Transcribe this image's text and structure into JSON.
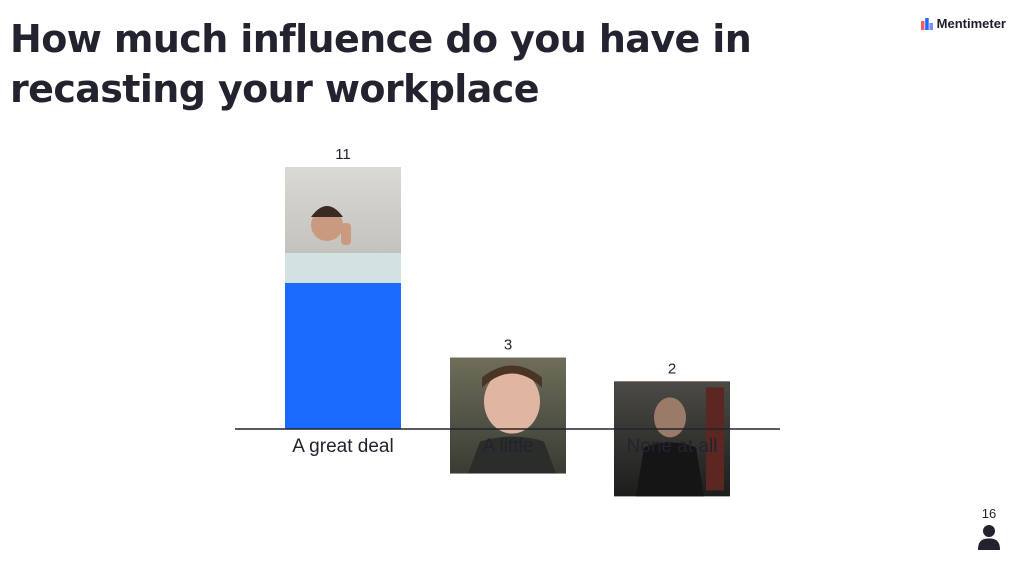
{
  "title": "How much influence do you have in recasting your workplace",
  "brand": {
    "name": "Mentimeter",
    "icon": "bar-chart-logo-icon",
    "colors": [
      "#ff5a5f",
      "#196cff"
    ]
  },
  "participants": {
    "count": "16",
    "icon": "person-icon"
  },
  "chart_data": {
    "type": "bar",
    "categories": [
      "A great deal",
      "A little",
      "None at all"
    ],
    "values": [
      11,
      3,
      2
    ],
    "colors": [
      "#196cff",
      "#ff89b8",
      "#ff4640"
    ],
    "data_labels": [
      "11",
      "3",
      "2"
    ],
    "ylim": [
      0,
      11
    ],
    "grid": false,
    "legend": "none"
  }
}
